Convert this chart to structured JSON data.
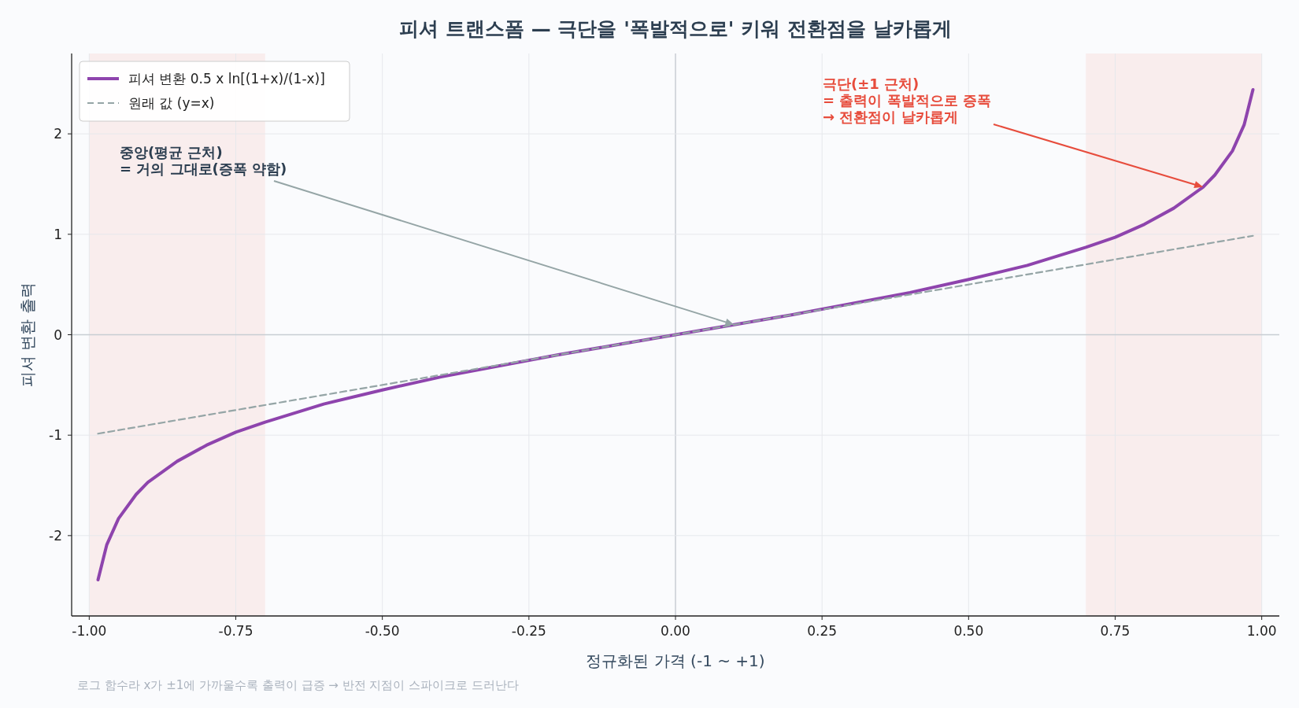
{
  "chart_data": {
    "type": "line",
    "title": "피셔 트랜스폼 — 극단을 '폭발적으로' 키워 전환점을 날카롭게",
    "xlabel": "정규화된 가격 (-1 ~ +1)",
    "ylabel": "피셔 변환 출력",
    "xlim": [
      -1.03,
      1.03
    ],
    "ylim": [
      -2.8,
      2.8
    ],
    "xticks": [
      {
        "value": -1,
        "label": "-1.00"
      },
      {
        "value": -0.75,
        "label": "-0.75"
      },
      {
        "value": -0.5,
        "label": "-0.50"
      },
      {
        "value": -0.25,
        "label": "-0.25"
      },
      {
        "value": 0,
        "label": "0.00"
      },
      {
        "value": 0.25,
        "label": "0.25"
      },
      {
        "value": 0.5,
        "label": "0.50"
      },
      {
        "value": 0.75,
        "label": "0.75"
      },
      {
        "value": 1,
        "label": "1.00"
      }
    ],
    "yticks": [
      -2,
      -1,
      0,
      1,
      2
    ],
    "grid": true,
    "legend": "top left",
    "series": [
      {
        "name": "피셔 변환  0.5 x ln[(1+x)/(1-x)]",
        "color": "#8e44ad",
        "line_style": "solid",
        "x": [
          -0.985,
          -0.97,
          -0.95,
          -0.92,
          -0.9,
          -0.85,
          -0.8,
          -0.75,
          -0.7,
          -0.6,
          -0.5,
          -0.4,
          -0.3,
          -0.2,
          -0.1,
          0,
          0.1,
          0.2,
          0.3,
          0.4,
          0.5,
          0.6,
          0.7,
          0.75,
          0.8,
          0.85,
          0.9,
          0.92,
          0.95,
          0.97,
          0.985
        ],
        "values": [
          -2.44,
          -2.09,
          -1.83,
          -1.59,
          -1.47,
          -1.26,
          -1.1,
          -0.97,
          -0.87,
          -0.69,
          -0.55,
          -0.42,
          -0.31,
          -0.2,
          -0.1,
          0,
          0.1,
          0.2,
          0.31,
          0.42,
          0.55,
          0.69,
          0.87,
          0.97,
          1.1,
          1.26,
          1.47,
          1.59,
          1.83,
          2.09,
          2.44
        ]
      },
      {
        "name": "원래 값 (y=x)",
        "color": "#95a5a6",
        "line_style": "dashed",
        "x": [
          -0.985,
          0.985
        ],
        "values": [
          -0.985,
          0.985
        ]
      }
    ],
    "bands": [
      {
        "axis": "x",
        "from": -1,
        "to": -0.7,
        "color": "#f9eded"
      },
      {
        "axis": "x",
        "from": 0.7,
        "to": 1,
        "color": "#f9eded"
      }
    ],
    "annotations": [
      {
        "text": "중앙(평균 근처)\n= 거의 그대로(증폭 약함)",
        "x": 0.1,
        "y": 0.1
      },
      {
        "text": "극단(±1 근처)\n= 출력이 폭발적으로 증폭\n→ 전환점이 날카롭게",
        "x": 0.9,
        "y": 1.47
      },
      "로그 함수라 x가 ±1에 가까울수록 출력이 급증 → 반전 지점이 스파이크로 드러난다"
    ]
  }
}
